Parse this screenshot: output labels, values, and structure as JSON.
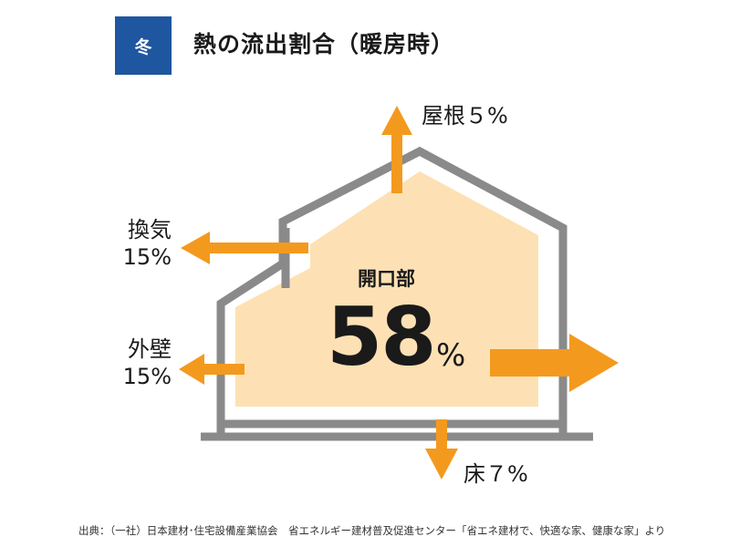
{
  "header": {
    "season": "冬",
    "title": "熱の流出割合（暖房時）"
  },
  "center": {
    "label": "開口部",
    "value": "58",
    "unit": "%"
  },
  "labels": {
    "roof": "屋根５%",
    "ventilation_line1": "換気",
    "ventilation_line2": "15%",
    "wall_line1": "外壁",
    "wall_line2": "15%",
    "floor": "床７%"
  },
  "source": "出典：（一社）日本建材･住宅設備産業協会　省エネルギー建材普及促進センター「省エネ建材で、快適な家、健康な家」より",
  "colors": {
    "badge": "#1e56a0",
    "house_outline": "#8a8a8a",
    "interior_fill": "#fde1b4",
    "arrow": "#f39a1e"
  }
}
